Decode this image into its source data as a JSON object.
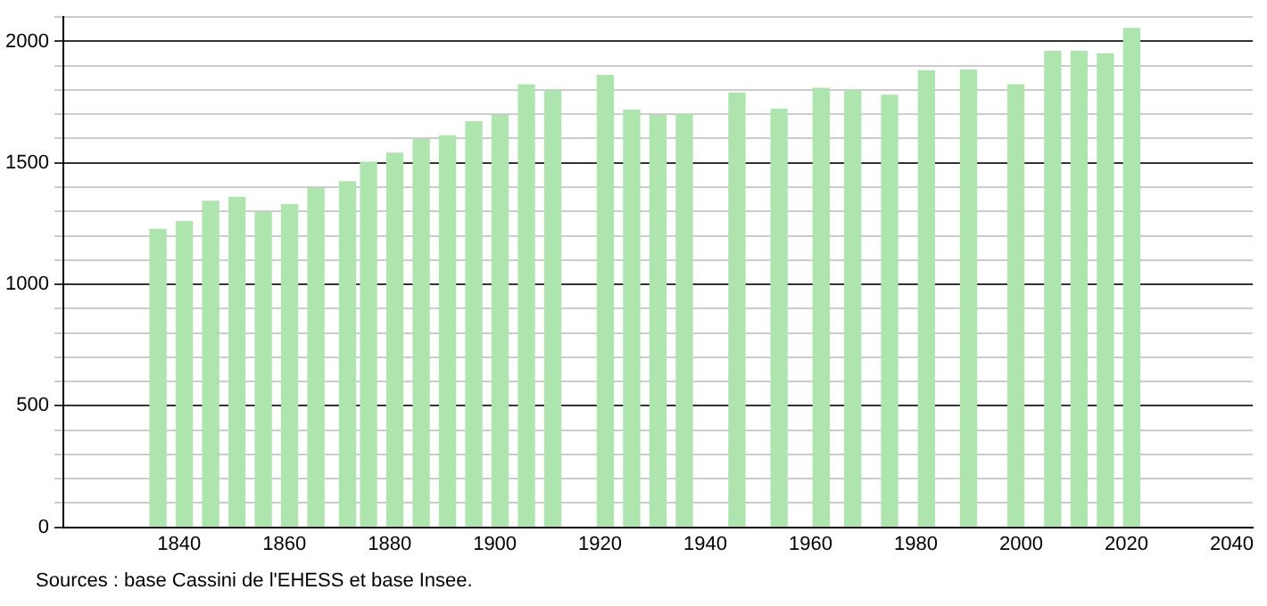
{
  "chart_data": {
    "type": "bar",
    "x": [
      1836,
      1841,
      1846,
      1851,
      1856,
      1861,
      1866,
      1872,
      1876,
      1881,
      1886,
      1891,
      1896,
      1901,
      1906,
      1911,
      1921,
      1926,
      1931,
      1936,
      1946,
      1954,
      1962,
      1968,
      1975,
      1982,
      1990,
      1999,
      2006,
      2011,
      2016,
      2021
    ],
    "values": [
      1226,
      1258,
      1342,
      1357,
      1296,
      1328,
      1395,
      1422,
      1502,
      1540,
      1596,
      1611,
      1669,
      1695,
      1821,
      1797,
      1860,
      1717,
      1695,
      1698,
      1787,
      1720,
      1807,
      1797,
      1778,
      1879,
      1882,
      1821,
      1959,
      1959,
      1949,
      2053
    ],
    "color": "#aee4ae",
    "xlim": [
      1818,
      2044
    ],
    "xticks": [
      1840,
      1860,
      1880,
      1900,
      1920,
      1940,
      1960,
      1980,
      2000,
      2020,
      2040
    ],
    "ylim": [
      0,
      2100
    ],
    "yticks": [
      0,
      {
        "value": 100,
        "label": null
      },
      {
        "value": 200,
        "label": null
      },
      {
        "value": 300,
        "label": null
      },
      {
        "value": 400,
        "label": null
      },
      500,
      {
        "value": 600,
        "label": null
      },
      {
        "value": 700,
        "label": null
      },
      {
        "value": 800,
        "label": null
      },
      {
        "value": 900,
        "label": null
      },
      1000,
      {
        "value": 1100,
        "label": null
      },
      {
        "value": 1200,
        "label": null
      },
      {
        "value": 1300,
        "label": null
      },
      {
        "value": 1400,
        "label": null
      },
      1500,
      {
        "value": 1600,
        "label": null
      },
      {
        "value": 1700,
        "label": null
      },
      {
        "value": 1800,
        "label": null
      },
      {
        "value": 1900,
        "label": null
      },
      2000,
      {
        "value": 2100,
        "label": null
      }
    ],
    "grid": "y",
    "legend": false,
    "annotations": [
      "Sources : base Cassini de l'EHESS et base Insee."
    ]
  }
}
